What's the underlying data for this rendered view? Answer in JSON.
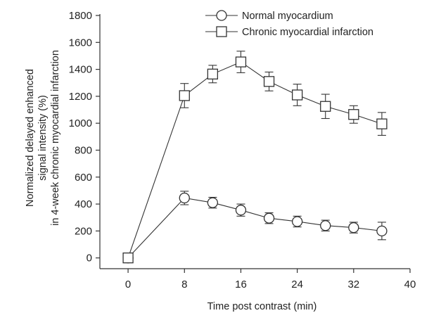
{
  "chart_data": {
    "type": "line",
    "xlabel": "Time post contrast (min)",
    "ylabel_lines": [
      "Normalized delayed enhanced",
      "signal intensity (%)",
      "in 4-week chronic myocardial infarction"
    ],
    "xlim": [
      -4,
      40
    ],
    "ylim": [
      -80,
      1800
    ],
    "xticks": [
      0,
      8,
      16,
      24,
      32,
      40
    ],
    "yticks": [
      0,
      200,
      400,
      600,
      800,
      1000,
      1200,
      1400,
      1600,
      1800
    ],
    "grid": false,
    "legend_position": "top-right",
    "series": [
      {
        "name": "Normal myocardium",
        "marker": "circle",
        "x": [
          0,
          8,
          12,
          16,
          20,
          24,
          28,
          32,
          36
        ],
        "y": [
          0,
          445,
          410,
          355,
          295,
          270,
          240,
          225,
          200
        ],
        "error": [
          15,
          50,
          40,
          45,
          40,
          40,
          40,
          40,
          65
        ]
      },
      {
        "name": "Chronic myocardial infarction",
        "marker": "square",
        "x": [
          0,
          8,
          12,
          16,
          20,
          24,
          28,
          32,
          36
        ],
        "y": [
          0,
          1205,
          1365,
          1455,
          1310,
          1210,
          1125,
          1065,
          995
        ],
        "error": [
          15,
          90,
          65,
          80,
          70,
          80,
          90,
          65,
          85
        ]
      }
    ]
  }
}
